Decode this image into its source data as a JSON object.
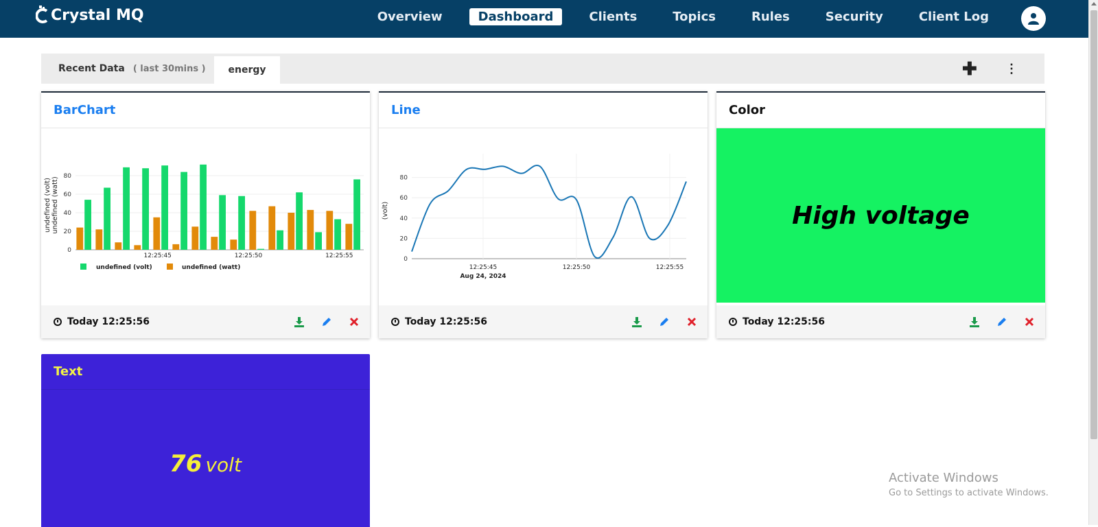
{
  "app": {
    "brand": "Crystal MQ"
  },
  "nav": {
    "items": [
      {
        "label": "Overview",
        "active": false
      },
      {
        "label": "Dashboard",
        "active": true
      },
      {
        "label": "Clients",
        "active": false
      },
      {
        "label": "Topics",
        "active": false
      },
      {
        "label": "Rules",
        "active": false
      },
      {
        "label": "Security",
        "active": false
      },
      {
        "label": "Client Log",
        "active": false
      }
    ],
    "user_icon": "user-icon"
  },
  "tabs": {
    "recent": {
      "label": "Recent Data",
      "sub": "( last 30mins )"
    },
    "energy": {
      "label": "energy"
    },
    "add_icon": "plus-icon",
    "more_icon": "kebab-icon"
  },
  "cards": {
    "barchart": {
      "title": "BarChart",
      "time": "Today 12:25:56"
    },
    "line": {
      "title": "Line",
      "time": "Today 12:25:56"
    },
    "color": {
      "title": "Color",
      "time": "Today 12:25:56",
      "message": "High voltage",
      "color": "#15f262"
    },
    "text": {
      "title": "Text",
      "value": "76",
      "unit": "volt",
      "bg": "#3d22d8"
    }
  },
  "colors": {
    "nav_bg": "#064066",
    "volt": "#15d86c",
    "watt": "#e28a0a",
    "line": "#1976b5",
    "download": "#1a9a4a",
    "edit": "#1a7ef0",
    "delete": "#e0202a"
  },
  "chart_data": [
    {
      "type": "bar",
      "x_ticks": [
        "12:25:45",
        "12:25:50",
        "12:25:55"
      ],
      "ylabels": [
        "undefined (volt)",
        "undefined (watt)"
      ],
      "ylim": [
        0,
        100
      ],
      "y_ticks": [
        "0",
        "20",
        "40",
        "60",
        "80"
      ],
      "series": [
        {
          "name": "undefined (volt)",
          "values": [
            54,
            67,
            89,
            88,
            91,
            84,
            92,
            59,
            58,
            1,
            21,
            62,
            19,
            33,
            76
          ]
        },
        {
          "name": "undefined (watt)",
          "values": [
            24,
            22,
            8,
            5,
            35,
            6,
            25,
            14,
            11,
            42,
            47,
            40,
            43,
            42,
            28
          ]
        }
      ]
    },
    {
      "type": "line",
      "ylabel": "(volt)",
      "x_ticks": [
        "12:25:45",
        "12:25:50",
        "12:25:55"
      ],
      "x_sublabel": "Aug 24, 2024",
      "ylim": [
        0,
        100
      ],
      "y_ticks": [
        "0",
        "20",
        "40",
        "60",
        "80"
      ],
      "values": [
        7,
        54,
        67,
        88,
        88,
        91,
        84,
        91,
        59,
        58,
        2,
        21,
        61,
        20,
        33,
        76
      ]
    }
  ],
  "watermark": {
    "line1": "Activate Windows",
    "line2": "Go to Settings to activate Windows."
  }
}
